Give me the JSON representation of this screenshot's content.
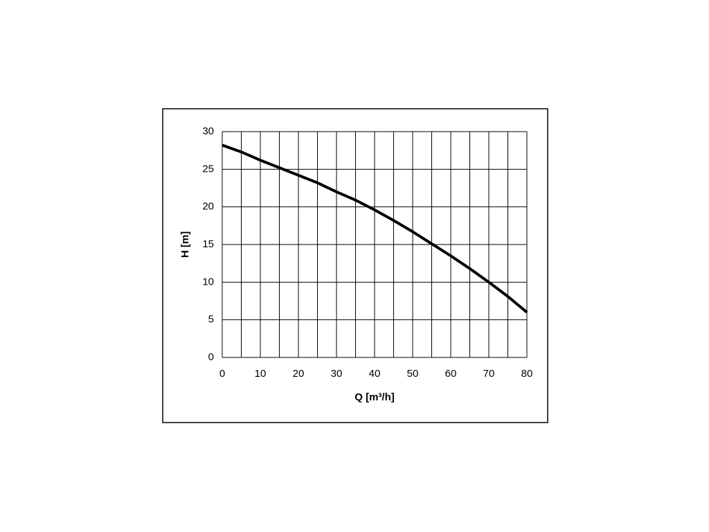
{
  "chart_data": {
    "type": "line",
    "xlabel": "Q [m³/h]",
    "ylabel": "H [m]",
    "x": [
      0,
      5,
      10,
      15,
      20,
      25,
      30,
      35,
      40,
      45,
      50,
      55,
      60,
      65,
      70,
      75,
      80
    ],
    "series": [
      {
        "color": "#000000",
        "values": [
          28.2,
          27.3,
          26.2,
          25.2,
          24.2,
          23.2,
          22.0,
          20.9,
          19.6,
          18.2,
          16.7,
          15.1,
          13.5,
          11.8,
          10.0,
          8.1,
          6.0
        ]
      }
    ],
    "xlim": [
      0,
      80
    ],
    "ylim": [
      0,
      30
    ],
    "xticks": [
      0,
      10,
      20,
      30,
      40,
      50,
      60,
      70,
      80
    ],
    "xminor_grid": [
      5,
      15,
      25,
      35,
      45,
      55,
      65,
      75
    ],
    "yticks": [
      0,
      5,
      10,
      15,
      20,
      25,
      30
    ],
    "grid": true
  }
}
